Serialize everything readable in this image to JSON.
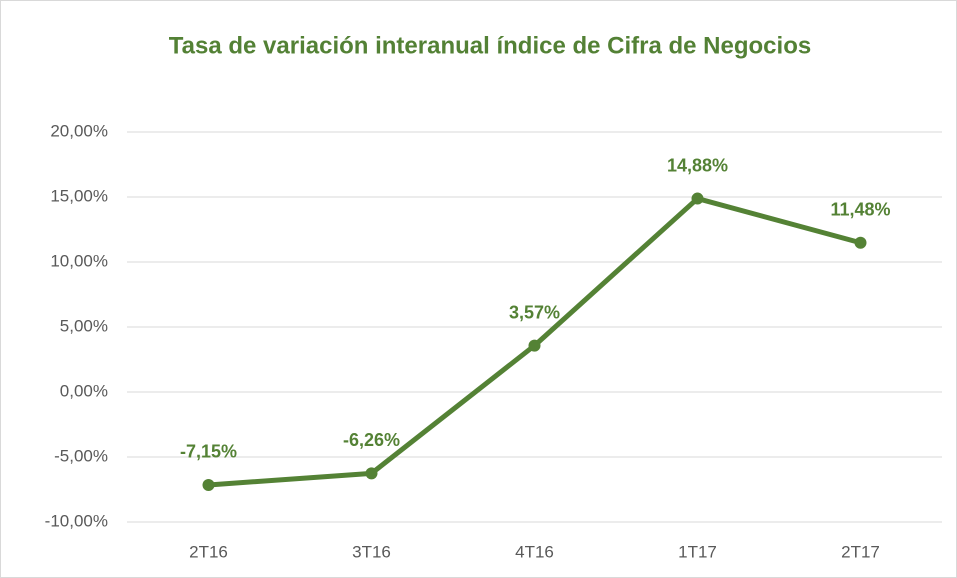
{
  "chart_data": {
    "type": "line",
    "title": "Tasa de variación interanual índice de Cifra de Negocios",
    "categories": [
      "2T16",
      "3T16",
      "4T16",
      "1T17",
      "2T17"
    ],
    "series": [
      {
        "name": "Tasa de variación",
        "color": "#548235",
        "values": [
          -7.15,
          -6.26,
          3.57,
          14.88,
          11.48
        ],
        "value_labels": [
          "-7,15%",
          "-6,26%",
          "3,57%",
          "14,88%",
          "11,48%"
        ]
      }
    ],
    "ylim": [
      -10,
      20
    ],
    "yticks": [
      {
        "value": -10,
        "label": "-10,00%"
      },
      {
        "value": -5,
        "label": "-5,00%"
      },
      {
        "value": 0,
        "label": "0,00%"
      },
      {
        "value": 5,
        "label": "5,00%"
      },
      {
        "value": 10,
        "label": "10,00%"
      },
      {
        "value": 15,
        "label": "15,00%"
      },
      {
        "value": 20,
        "label": "20,00%"
      }
    ],
    "grid": true
  }
}
